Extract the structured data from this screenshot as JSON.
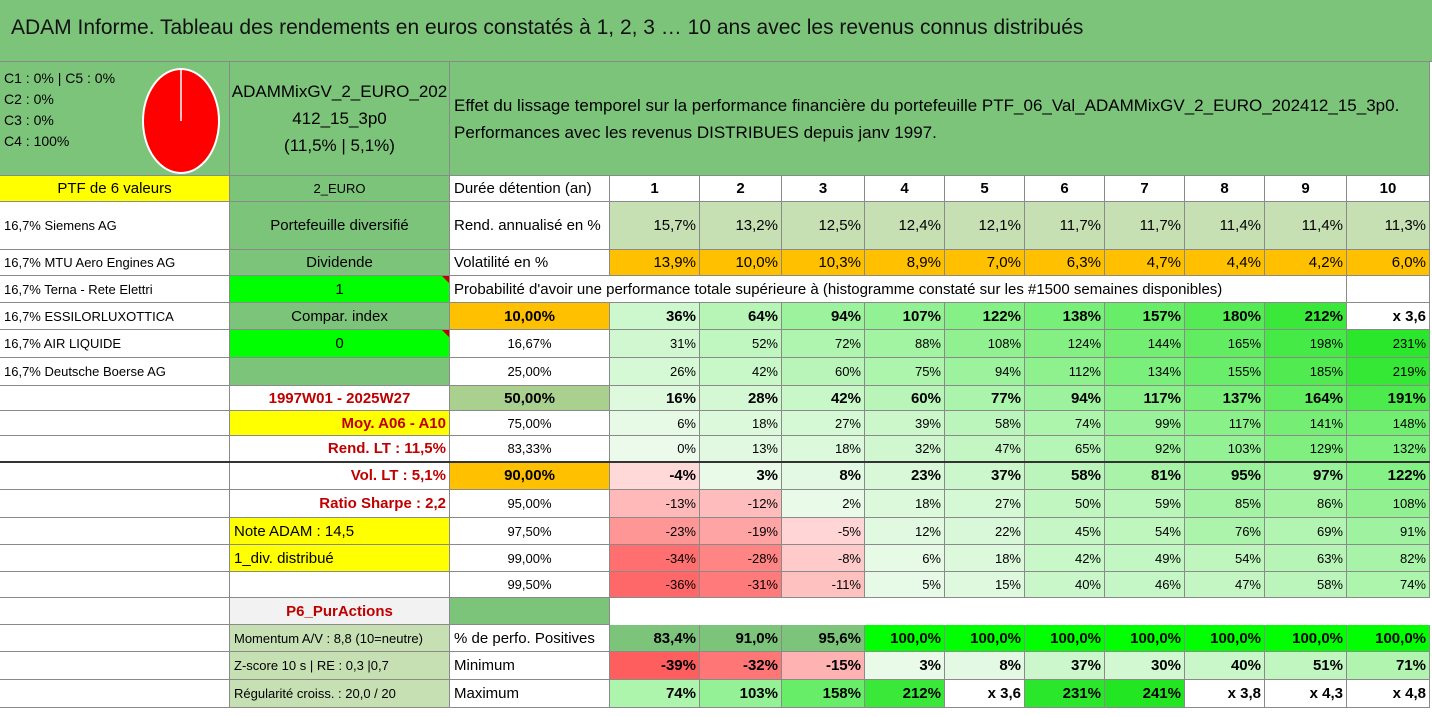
{
  "title": "ADAM Informe. Tableau des rendements en euros constatés à 1, 2, 3 … 10 ans avec les revenus connus distribués",
  "colors": {
    "header_green": "#7dc47b",
    "light_green": "#c6e0b4",
    "yellow": "#ffff00",
    "orange": "#ffc000",
    "bright_green": "#00ff00",
    "red_text": "#c00000",
    "pie_red": "#ff0000"
  },
  "allocation": {
    "line1": "C1 : 0% | C5 : 0%",
    "line2": "C2 : 0%",
    "line3": "C3 : 0%",
    "line4": "C4 : 100%",
    "pie_values": [
      0,
      0,
      0,
      100,
      0
    ]
  },
  "fund": {
    "name_line1": "ADAMMixGV_2_EURO_202",
    "name_line2": "412_15_3p0",
    "name_line3": "(11,5% | 5,1%)"
  },
  "description": {
    "line1": "Effet du lissage temporel sur la performance financière du portefeuille PTF_06_Val_ADAMMixGV_2_EURO_202412_15_3p0.",
    "line2": "Performances avec les revenus DISTRIBUES depuis janv 1997."
  },
  "left": {
    "ptf_label": "PTF de 6 valeurs",
    "holdings": [
      "16,7% Siemens AG",
      "16,7% MTU Aero Engines AG",
      "16,7% Terna - Rete Elettri",
      "16,7% ESSILORLUXOTTICA",
      "16,7% AIR LIQUIDE",
      "16,7% Deutsche Boerse AG"
    ]
  },
  "mid": {
    "currency": "2_EURO",
    "portfolio_type": "Portefeuille diversifié",
    "dividende_label": "Dividende",
    "dividende_value": "1",
    "compar_label": "Compar. index",
    "compar_value": "0",
    "period": "1997W01 - 2025W27",
    "moy": "Moy. A06 - A10",
    "rend_lt": "Rend. LT : 11,5%",
    "vol_lt": "Vol. LT : 5,1%",
    "sharpe": "Ratio Sharpe : 2,2",
    "note": "Note ADAM : 14,5",
    "div": "1_div. distribué",
    "p6": "P6_PurActions",
    "momentum": "Momentum A/V : 8,8 (10=neutre)",
    "zscore": "Z-score 10 s | RE : 0,3 |0,7",
    "regularite": "Régularité croiss. : 20,0 / 20"
  },
  "table": {
    "duration_label": "Durée détention (an)",
    "years": [
      "1",
      "2",
      "3",
      "4",
      "5",
      "6",
      "7",
      "8",
      "9",
      "10"
    ],
    "rend_label": "Rend. annualisé en %",
    "rend": [
      "15,7%",
      "13,2%",
      "12,5%",
      "12,4%",
      "12,1%",
      "11,7%",
      "11,7%",
      "11,4%",
      "11,4%",
      "11,3%"
    ],
    "vol_label": "Volatilité en %",
    "vol": [
      "13,9%",
      "10,0%",
      "10,3%",
      "8,9%",
      "7,0%",
      "6,3%",
      "4,7%",
      "4,4%",
      "4,2%",
      "6,0%"
    ],
    "prob_title": "Probabilité d'avoir une performance totale supérieure à (histogramme constaté sur les #1500 semaines disponibles)",
    "prob_rows": [
      {
        "p": "10,00%",
        "vals": [
          "36%",
          "64%",
          "94%",
          "107%",
          "122%",
          "138%",
          "157%",
          "180%",
          "212%",
          "x 3,6"
        ]
      },
      {
        "p": "16,67%",
        "vals": [
          "31%",
          "52%",
          "72%",
          "88%",
          "108%",
          "124%",
          "144%",
          "165%",
          "198%",
          "231%"
        ]
      },
      {
        "p": "25,00%",
        "vals": [
          "26%",
          "42%",
          "60%",
          "75%",
          "94%",
          "112%",
          "134%",
          "155%",
          "185%",
          "219%"
        ]
      },
      {
        "p": "50,00%",
        "vals": [
          "16%",
          "28%",
          "42%",
          "60%",
          "77%",
          "94%",
          "117%",
          "137%",
          "164%",
          "191%"
        ]
      },
      {
        "p": "75,00%",
        "vals": [
          "6%",
          "18%",
          "27%",
          "39%",
          "58%",
          "74%",
          "99%",
          "117%",
          "141%",
          "148%"
        ]
      },
      {
        "p": "83,33%",
        "vals": [
          "0%",
          "13%",
          "18%",
          "32%",
          "47%",
          "65%",
          "92%",
          "103%",
          "129%",
          "132%"
        ]
      },
      {
        "p": "90,00%",
        "vals": [
          "-4%",
          "3%",
          "8%",
          "23%",
          "37%",
          "58%",
          "81%",
          "95%",
          "97%",
          "122%"
        ]
      },
      {
        "p": "95,00%",
        "vals": [
          "-13%",
          "-12%",
          "2%",
          "18%",
          "27%",
          "50%",
          "59%",
          "85%",
          "86%",
          "108%"
        ]
      },
      {
        "p": "97,50%",
        "vals": [
          "-23%",
          "-19%",
          "-5%",
          "12%",
          "22%",
          "45%",
          "54%",
          "76%",
          "69%",
          "91%"
        ]
      },
      {
        "p": "99,00%",
        "vals": [
          "-34%",
          "-28%",
          "-8%",
          "6%",
          "18%",
          "42%",
          "49%",
          "54%",
          "63%",
          "82%"
        ]
      },
      {
        "p": "99,50%",
        "vals": [
          "-36%",
          "-31%",
          "-11%",
          "5%",
          "15%",
          "40%",
          "46%",
          "47%",
          "58%",
          "74%"
        ]
      }
    ],
    "pos_label": "% de perfo. Positives",
    "pos": [
      "83,4%",
      "91,0%",
      "95,6%",
      "100,0%",
      "100,0%",
      "100,0%",
      "100,0%",
      "100,0%",
      "100,0%",
      "100,0%"
    ],
    "min_label": "Minimum",
    "min": [
      "-39%",
      "-32%",
      "-15%",
      "3%",
      "8%",
      "37%",
      "30%",
      "40%",
      "51%",
      "71%"
    ],
    "max_label": "Maximum",
    "max": [
      "74%",
      "103%",
      "158%",
      "212%",
      "x 3,6",
      "231%",
      "241%",
      "x 3,8",
      "x 4,3",
      "x 4,8"
    ]
  }
}
